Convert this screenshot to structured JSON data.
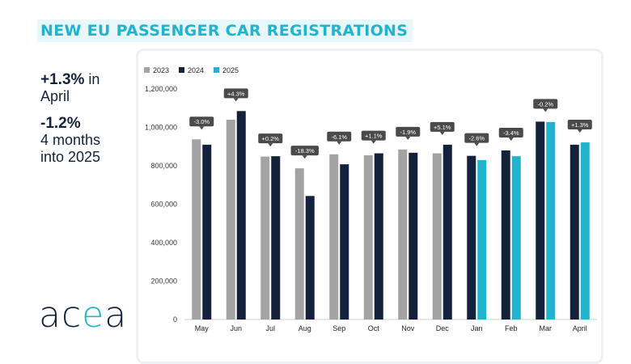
{
  "header": {
    "title": "NEW EU PASSENGER CAR REGISTRATIONS"
  },
  "summary": {
    "stat1_value": "+1.3%",
    "stat1_suffix": "in",
    "stat1_line2": "April",
    "stat2_value": "-1.2%",
    "stat2_line2": "4 months",
    "stat2_line3": "into 2025"
  },
  "logo": {
    "text_a": "ac",
    "text_dot": "e",
    "text_b": "a"
  },
  "colors": {
    "accent": "#20b4cf",
    "dark": "#13223a",
    "grey": "#a3a3a3",
    "label_bg": "#4a4a4a"
  },
  "chart_data": {
    "type": "bar",
    "title": "NEW EU PASSENGER CAR REGISTRATIONS",
    "categories": [
      "May",
      "Jun",
      "Jul",
      "Aug",
      "Sep",
      "Oct",
      "Nov",
      "Dec",
      "Jan",
      "Feb",
      "Mar",
      "April"
    ],
    "series": [
      {
        "name": "2023",
        "color": "#a3a3a3",
        "values": [
          938000,
          1040000,
          848000,
          787000,
          860000,
          855000,
          885000,
          865000,
          null,
          null,
          null,
          null
        ]
      },
      {
        "name": "2024",
        "color": "#13223a",
        "values": [
          910000,
          1085000,
          850000,
          643000,
          808000,
          865000,
          868000,
          910000,
          852000,
          880000,
          1030000,
          910000
        ]
      },
      {
        "name": "2025",
        "color": "#20b4cf",
        "values": [
          null,
          null,
          null,
          null,
          null,
          null,
          null,
          null,
          830000,
          850000,
          1028000,
          922000
        ]
      }
    ],
    "change_labels": [
      "-3.0%",
      "+4.3%",
      "+0.2%",
      "-18.3%",
      "-6.1%",
      "+1.1%",
      "-1.9%",
      "+5.1%",
      "-2.6%",
      "-3.4%",
      "-0.2%",
      "+1.3%"
    ],
    "y_ticks": [
      "0",
      "200,000",
      "400,000",
      "600,000",
      "800,000",
      "1,000,000",
      "1,200,000"
    ],
    "y_tick_values": [
      0,
      200000,
      400000,
      600000,
      800000,
      1000000,
      1200000
    ],
    "ylim": [
      0,
      1200000
    ],
    "xlabel": "",
    "ylabel": "",
    "legend_position": "top-left",
    "grid": false
  }
}
